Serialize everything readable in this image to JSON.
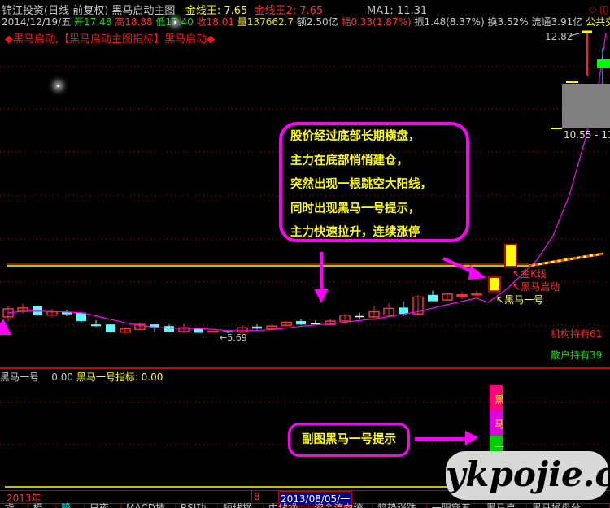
{
  "header": {
    "stock": "锦江投资(日线 前复权) 黑马启动主图",
    "jxw_label": "金线王: 7.65",
    "jxw2_label": "金线王2: 7.65",
    "ma1": "MA1: 11.31"
  },
  "quote": {
    "date": "2014/12/19/五",
    "open": "开17.48",
    "high": "高18.88",
    "low": "低17.40",
    "close": "收18.01",
    "volume": "量137662.7",
    "amount": "额2.50亿",
    "change": "幅0.33(1.87%)",
    "amplitude": "振1.48(8.37%)",
    "turnover": "换3.52%",
    "float": "流通3.91亿",
    "sector": "公共交通"
  },
  "indicator_title": "◆黑马启动,【黑马启动主图指标】黑马启动◆",
  "labels": {
    "high_price": "12.82",
    "low_price": "5.69",
    "range": "10.55 - 11.",
    "gold_k": "金K线",
    "hm_start": "黑马启动",
    "hm_one": "黑马一号",
    "inst": "机构持有61",
    "retail": "散户持有39"
  },
  "callout": {
    "lines": [
      "股价经过底部长期横盘，",
      "主力在底部悄悄建仓，",
      "突然出现一根跳空大阳线，",
      "同时出现黑马一号提示，",
      "主力快速拉升，连续涨停"
    ]
  },
  "sub": {
    "name": "黑马一号",
    "value": "0.00",
    "ind": "黑马一号指标: 0.00",
    "callout": "副图黑马一号提示",
    "bar_chars": [
      "黑",
      "马",
      "一"
    ]
  },
  "timebar": {
    "year": "2013年",
    "month": "8",
    "cursor_date": "2013/08/05/一"
  },
  "tabs": [
    "指标",
    "模板",
    "管理",
    "日夜头",
    "MACD技术",
    "RSI功能",
    "短线操盘",
    "中线操盘",
    "资金流向统计",
    "趋势涨跌停",
    "一阳穿五线",
    "黑马启动",
    "黑马操盘分析",
    "..."
  ],
  "watermark": "ykpojie.com",
  "colors": {
    "up": "#ff3030",
    "down": "#55ffff",
    "ma": "#ff00ff",
    "gold_line": "#ffff00",
    "callout_border": "#ff00ff"
  },
  "chart_data": {
    "type": "candlestick",
    "candles": [
      [
        6.08,
        6.27,
        6.35,
        5.96
      ],
      [
        6.21,
        6.29,
        6.39,
        6.16
      ],
      [
        6.33,
        6.12,
        6.35,
        6.1
      ],
      [
        6.12,
        6.2,
        6.27,
        6.08
      ],
      [
        6.2,
        6.14,
        6.25,
        6.1
      ],
      [
        6.18,
        5.98,
        6.2,
        5.95
      ],
      [
        5.9,
        5.86,
        6.0,
        5.84
      ],
      [
        5.9,
        5.72,
        5.9,
        5.7
      ],
      [
        5.72,
        5.8,
        5.84,
        5.68
      ],
      [
        5.78,
        5.9,
        5.95,
        5.76
      ],
      [
        5.9,
        5.82,
        5.9,
        5.72
      ],
      [
        5.86,
        5.73,
        5.9,
        5.71
      ],
      [
        5.73,
        5.82,
        5.92,
        5.71
      ],
      [
        5.8,
        5.7,
        5.82,
        5.7
      ],
      [
        5.72,
        5.74,
        5.75,
        5.7
      ],
      [
        5.74,
        5.71,
        5.76,
        5.69
      ],
      [
        5.72,
        5.82,
        5.88,
        5.7
      ],
      [
        5.85,
        5.8,
        5.9,
        5.78
      ],
      [
        5.8,
        5.86,
        5.9,
        5.76
      ],
      [
        5.88,
        5.95,
        5.98,
        5.86
      ],
      [
        5.98,
        5.9,
        6.02,
        5.88
      ],
      [
        5.93,
        5.93,
        6.0,
        5.9
      ],
      [
        5.9,
        5.98,
        6.04,
        5.88
      ],
      [
        5.98,
        6.12,
        6.15,
        5.98
      ],
      [
        6.1,
        6.1,
        6.18,
        6.02
      ],
      [
        6.08,
        6.2,
        6.35,
        6.06
      ],
      [
        6.12,
        6.28,
        6.4,
        6.1
      ],
      [
        6.3,
        6.15,
        6.45,
        6.1
      ],
      [
        6.15,
        6.55,
        6.6,
        6.12
      ],
      [
        6.6,
        6.45,
        6.7,
        6.45
      ],
      [
        6.48,
        6.62,
        6.65,
        6.48
      ],
      [
        6.57,
        6.6,
        6.67,
        6.5
      ],
      [
        6.6,
        6.62,
        6.7,
        6.55
      ]
    ],
    "highlight_candles": [
      [
        6.69,
        7.02,
        7.02,
        6.69
      ],
      [
        7.27,
        7.8,
        7.8,
        7.27
      ]
    ],
    "gold_line": 7.25
  }
}
